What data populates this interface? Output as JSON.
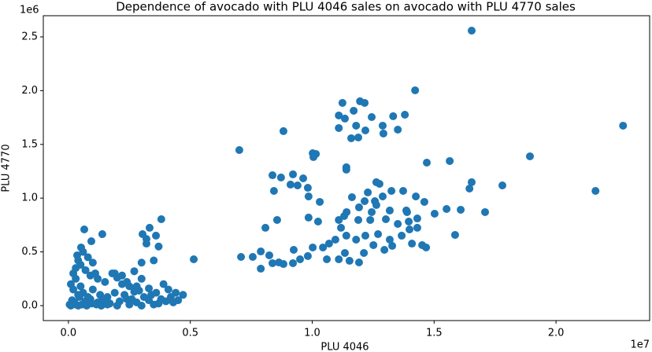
{
  "chart_data": {
    "type": "scatter",
    "title": "Dependence of avocado with PLU 4046 sales on avocado with PLU 4770 sales",
    "x_label": "PLU 4046",
    "y_label": "PLU 4770",
    "x_offset_label": "1e7",
    "y_offset_label": "1e6",
    "color": "#1f77b4",
    "xlim": [
      -0.103,
      2.384
    ],
    "ylim": [
      -0.139,
      2.697
    ],
    "xticks": [
      {
        "value": 0,
        "label": "0.0"
      },
      0.5,
      {
        "value": 1,
        "label": "1.0"
      },
      1.5,
      {
        "value": 2,
        "label": "2.0"
      }
    ],
    "yticks": [
      {
        "value": 0,
        "label": "0.0"
      },
      0.5,
      {
        "value": 1,
        "label": "1.0"
      },
      1.5,
      {
        "value": 2,
        "label": "2.0"
      },
      2.5
    ],
    "x": [
      1.654,
      2.275,
      1.893,
      2.162,
      1.78,
      1.709,
      1.586,
      1.645,
      1.654,
      1.564,
      1.47,
      1.422,
      1.38,
      1.351,
      1.332,
      1.244,
      1.196,
      1.215,
      1.124,
      1.17,
      1.109,
      1.134,
      1.18,
      1.189,
      1.16,
      1.218,
      1.289,
      1.292,
      1.109,
      0.882,
      0.701,
      1.002,
      1.015,
      1.005,
      1.14,
      1.14,
      0.837,
      0.872,
      0.921,
      0.963,
      0.911,
      0.94,
      0.982,
      0.843,
      1.263,
      1.276,
      1.373,
      1.425,
      1.325,
      1.289,
      1.228,
      1.163,
      1.215,
      1.257,
      1.192,
      1.263,
      1.318,
      1.386,
      1.46,
      1.502,
      1.551,
      1.609,
      0.985,
      1.031,
      0.985,
      1.024,
      0.856,
      0.808,
      1.141,
      1.131,
      1.109,
      1.118,
      1.189,
      1.244,
      1.238,
      1.302,
      1.351,
      1.396,
      1.399,
      1.431,
      1.389,
      1.431,
      0.708,
      0.756,
      0.789,
      0.824,
      0.789,
      0.837,
      0.863,
      0.882,
      0.921,
      0.95,
      0.982,
      1.002,
      1.044,
      1.069,
      1.06,
      1.095,
      1.14,
      1.18,
      1.218,
      1.27,
      1.318,
      1.367,
      1.409,
      1.451,
      1.467,
      1.109,
      1.153,
      1.192,
      1.134,
      1.212,
      1.296,
      1.328,
      1.251,
      0.924,
      0.514,
      0.065,
      0.139,
      0.381,
      0.333,
      0.359,
      0.304,
      0.32,
      0.094,
      0.052,
      0.036,
      0.06,
      0.08,
      0.1,
      0.04,
      0.02,
      0.03,
      0.05,
      0.07,
      0.09,
      0.11,
      0.12,
      0.15,
      0.18,
      0.2,
      0.22,
      0.25,
      0.27,
      0.3,
      0.32,
      0.35,
      0.37,
      0.39,
      0.41,
      0.44,
      0.47,
      0.01,
      0.02,
      0.03,
      0.04,
      0.05,
      0.06,
      0.08,
      0.1,
      0.13,
      0.16,
      0.19,
      0.23,
      0.26,
      0.29,
      0.31,
      0.34,
      0.36,
      0.38,
      0.42,
      0.45,
      0.015,
      0.025,
      0.045,
      0.07,
      0.09,
      0.12,
      0.14,
      0.17,
      0.21,
      0.24,
      0.28,
      0.33,
      0.37,
      0.4,
      0.43,
      0.005,
      0.01,
      0.02,
      0.03,
      0.04,
      0.055,
      0.075,
      0.095,
      0.115,
      0.135,
      0.16,
      0.2,
      0.25,
      0.3,
      0.35,
      0.28,
      0.24,
      0.3,
      0.33,
      0.27,
      0.22,
      0.19
    ],
    "y": [
      2.558,
      1.674,
      1.389,
      1.067,
      1.118,
      0.87,
      0.658,
      1.089,
      1.148,
      1.345,
      1.33,
      2.003,
      1.776,
      1.637,
      1.762,
      1.754,
      1.901,
      1.886,
      1.886,
      1.813,
      1.769,
      1.74,
      1.674,
      1.564,
      1.557,
      1.63,
      1.674,
      1.601,
      1.652,
      1.623,
      1.447,
      1.418,
      1.411,
      1.382,
      1.287,
      1.265,
      1.213,
      1.192,
      1.221,
      1.184,
      1.126,
      1.118,
      1.096,
      1.067,
      1.148,
      1.133,
      1.067,
      1.016,
      1.067,
      1.016,
      1.053,
      1.009,
      0.972,
      0.972,
      0.914,
      0.936,
      0.885,
      0.885,
      0.965,
      0.855,
      0.899,
      0.892,
      1.016,
      0.965,
      0.819,
      0.782,
      0.797,
      0.724,
      0.87,
      0.833,
      0.797,
      0.724,
      0.797,
      0.87,
      0.797,
      0.804,
      0.76,
      0.782,
      0.709,
      0.811,
      0.87,
      0.724,
      0.453,
      0.453,
      0.504,
      0.468,
      0.344,
      0.395,
      0.402,
      0.387,
      0.395,
      0.431,
      0.461,
      0.541,
      0.541,
      0.577,
      0.431,
      0.614,
      0.651,
      0.614,
      0.651,
      0.665,
      0.614,
      0.651,
      0.577,
      0.563,
      0.541,
      0.431,
      0.417,
      0.402,
      0.49,
      0.49,
      0.519,
      0.556,
      0.563,
      0.519,
      0.431,
      0.709,
      0.665,
      0.804,
      0.724,
      0.651,
      0.665,
      0.577,
      0.599,
      0.541,
      0.468,
      0.5,
      0.45,
      0.4,
      0.42,
      0.3,
      0.35,
      0.38,
      0.33,
      0.28,
      0.3,
      0.25,
      0.22,
      0.3,
      0.26,
      0.2,
      0.18,
      0.32,
      0.4,
      0.62,
      0.42,
      0.55,
      0.2,
      0.15,
      0.12,
      0.1,
      0.2,
      0.15,
      0.25,
      0.1,
      0.18,
      0.12,
      0.08,
      0.15,
      0.1,
      0.08,
      0.12,
      0.1,
      0.06,
      0.14,
      0.08,
      0.1,
      0.12,
      0.06,
      0.08,
      0.05,
      0.05,
      0.03,
      0.08,
      0.04,
      0.06,
      0.03,
      0.05,
      0.02,
      0.04,
      0.06,
      0.03,
      0.05,
      0.02,
      0.04,
      0.03,
      0.01,
      0.0,
      0.02,
      0.01,
      0.0,
      0.01,
      0.0,
      0.02,
      0.01,
      0.0,
      0.01,
      0.0,
      0.01,
      0.0,
      0.01,
      0.18,
      0.22,
      0.25,
      0.16,
      0.13,
      0.28,
      0.3
    ]
  }
}
